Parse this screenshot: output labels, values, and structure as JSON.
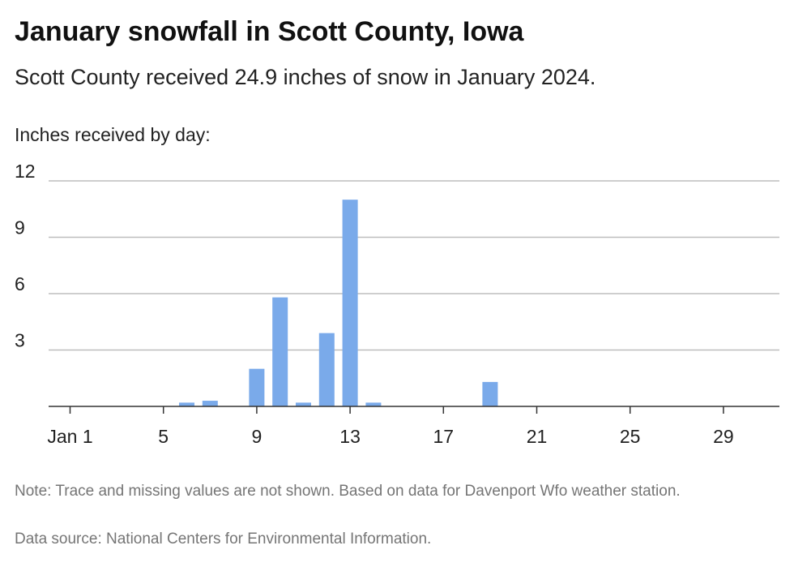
{
  "title": "January snowfall in Scott County, Iowa",
  "subtitle": "Scott County received 24.9 inches of snow in January 2024.",
  "notes": {
    "note": "Note: Trace and missing values are not shown. Based on data for Davenport Wfo weather station.",
    "source": "Data source: National Centers for Environmental Information."
  },
  "chart_data": {
    "type": "bar",
    "ylabel": "Inches received by day:",
    "xlabel": "",
    "days": [
      1,
      2,
      3,
      4,
      5,
      6,
      7,
      8,
      9,
      10,
      11,
      12,
      13,
      14,
      15,
      16,
      17,
      18,
      19,
      20,
      21,
      22,
      23,
      24,
      25,
      26,
      27,
      28,
      29,
      30,
      31
    ],
    "values": [
      0,
      0,
      0,
      0,
      0,
      0.2,
      0.3,
      0,
      2.0,
      5.8,
      0.2,
      3.9,
      11.0,
      0.2,
      0,
      0,
      0,
      0,
      1.3,
      0,
      0,
      0,
      0,
      0,
      0,
      0,
      0,
      0,
      0,
      0,
      0
    ],
    "x_ticks": [
      {
        "day": 1,
        "label": "Jan 1"
      },
      {
        "day": 5,
        "label": "5"
      },
      {
        "day": 9,
        "label": "9"
      },
      {
        "day": 13,
        "label": "13"
      },
      {
        "day": 17,
        "label": "17"
      },
      {
        "day": 21,
        "label": "21"
      },
      {
        "day": 25,
        "label": "25"
      },
      {
        "day": 29,
        "label": "29"
      }
    ],
    "y_ticks": [
      3,
      6,
      9,
      12
    ],
    "ylim": [
      0,
      12
    ],
    "grid": true,
    "bar_color": "#7aaaea",
    "grid_color": "#bdbdbd"
  }
}
